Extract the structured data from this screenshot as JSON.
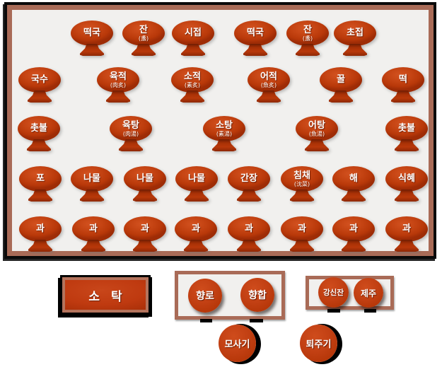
{
  "table": {
    "rows": [
      {
        "items": [
          {
            "label": "떡국"
          },
          {
            "label": "잔",
            "sub": "(盞)"
          },
          {
            "label": "시접"
          },
          {
            "label": "떡국"
          },
          {
            "label": "잔",
            "sub": "(盞)"
          },
          {
            "label": "초접"
          }
        ]
      },
      {
        "items": [
          {
            "label": "국수"
          },
          {
            "label": "육적",
            "sub": "(肉炙)"
          },
          {
            "label": "소적",
            "sub": "(素炙)"
          },
          {
            "label": "어적",
            "sub": "(魚炙)"
          },
          {
            "label": "꿀"
          },
          {
            "label": "떡"
          }
        ]
      },
      {
        "items": [
          {
            "label": "촛불"
          },
          {
            "label": "육탕",
            "sub": "(肉湯)"
          },
          {
            "label": "소탕",
            "sub": "(素湯)"
          },
          {
            "label": "어탕",
            "sub": "(魚湯)"
          },
          {
            "label": "촛불"
          }
        ]
      },
      {
        "items": [
          {
            "label": "포"
          },
          {
            "label": "나물"
          },
          {
            "label": "나물"
          },
          {
            "label": "나물"
          },
          {
            "label": "간장"
          },
          {
            "label": "침채",
            "sub": "(沈菜)"
          },
          {
            "label": "해"
          },
          {
            "label": "식혜"
          }
        ]
      },
      {
        "items": [
          {
            "label": "과"
          },
          {
            "label": "과"
          },
          {
            "label": "과"
          },
          {
            "label": "과"
          },
          {
            "label": "과"
          },
          {
            "label": "과"
          },
          {
            "label": "과"
          },
          {
            "label": "과"
          }
        ]
      }
    ]
  },
  "bottom": {
    "small_table": {
      "label": "소 탁"
    },
    "incense_stand": {
      "items": [
        {
          "label": "향로"
        },
        {
          "label": "향합"
        }
      ]
    },
    "libation_stand": {
      "items": [
        {
          "label": "강신잔"
        },
        {
          "label": "제주"
        }
      ]
    },
    "mosagi": {
      "label": "모사기"
    },
    "toejugi": {
      "label": "퇴주기"
    }
  },
  "colors": {
    "dish_red": "#bf3a10",
    "frame_brown": "#a96b57",
    "table_surface": "#f1f0ee",
    "outline_black": "#000000",
    "label_white": "#ffffff"
  }
}
